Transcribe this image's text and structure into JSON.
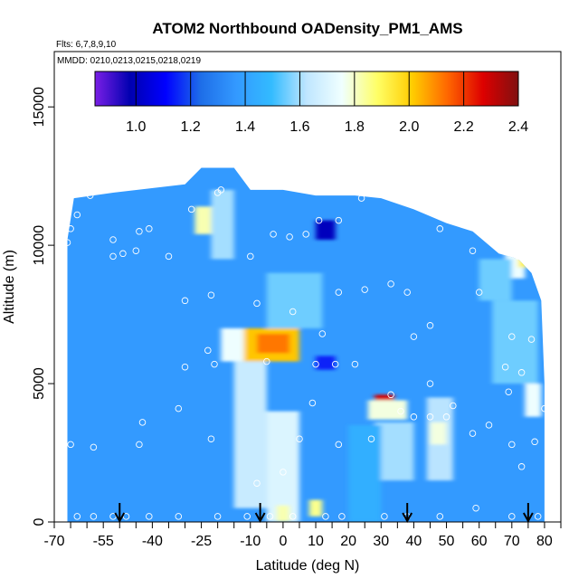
{
  "chart_data": {
    "type": "heatmap",
    "title": "ATOM2 Northbound OADensity_PM1_AMS",
    "flights_label": "Flts: 6,7,8,9,10",
    "dates_label": "MMDD: 0210,0213,0215,0218,0219",
    "xlabel": "Latitude (deg N)",
    "ylabel": "Altitude (m)",
    "xlim": [
      -70,
      85
    ],
    "ylim": [
      0,
      17000
    ],
    "x_ticks": [
      -70,
      -55,
      -40,
      -25,
      -10,
      0,
      10,
      20,
      30,
      40,
      50,
      60,
      70,
      80
    ],
    "x_minor_ticks": [
      -65,
      -60,
      -50,
      -45,
      -35,
      -30,
      -20,
      -15,
      -5,
      5,
      15,
      25,
      35,
      45,
      55,
      65,
      75,
      85
    ],
    "y_ticks": [
      0,
      5000,
      10000,
      15000
    ],
    "colorbar": {
      "min": 0.85,
      "max": 2.4,
      "ticks": [
        1.0,
        1.2,
        1.4,
        1.6,
        1.8,
        2.0,
        2.2,
        2.4
      ],
      "colors": [
        "#7a1fe6",
        "#0000b0",
        "#0000ff",
        "#1e6ee8",
        "#3399ff",
        "#33bbff",
        "#bfe6ff",
        "#f0ffff",
        "#ffff66",
        "#ffcc00",
        "#ff6600",
        "#dd0000",
        "#801010"
      ]
    },
    "background_value": 1.37,
    "envelope": [
      [
        -66,
        0
      ],
      [
        -66,
        10200
      ],
      [
        -64,
        11700
      ],
      [
        -52,
        11900
      ],
      [
        -30,
        12200
      ],
      [
        -25,
        12800
      ],
      [
        -15,
        12800
      ],
      [
        -10,
        12000
      ],
      [
        0,
        12000
      ],
      [
        10,
        11800
      ],
      [
        22,
        11800
      ],
      [
        30,
        11700
      ],
      [
        40,
        11300
      ],
      [
        50,
        10800
      ],
      [
        58,
        10500
      ],
      [
        66,
        9700
      ],
      [
        72,
        9500
      ],
      [
        76,
        9000
      ],
      [
        79,
        8000
      ],
      [
        80,
        5000
      ],
      [
        80,
        0
      ]
    ],
    "patches": [
      {
        "lat": [
          -12,
          5
        ],
        "alt": [
          5800,
          7000
        ],
        "value": 2.02
      },
      {
        "lat": [
          -8,
          2
        ],
        "alt": [
          6100,
          6800
        ],
        "value": 2.12
      },
      {
        "lat": [
          -19,
          -12
        ],
        "alt": [
          5800,
          7000
        ],
        "value": 1.75
      },
      {
        "lat": [
          -27,
          -20
        ],
        "alt": [
          10400,
          11400
        ],
        "value": 1.82
      },
      {
        "lat": [
          -22,
          -15
        ],
        "alt": [
          9500,
          12000
        ],
        "value": 1.6
      },
      {
        "lat": [
          -15,
          -5
        ],
        "alt": [
          500,
          5800
        ],
        "value": 1.65
      },
      {
        "lat": [
          -5,
          5
        ],
        "alt": [
          0,
          4000
        ],
        "value": 1.7
      },
      {
        "lat": [
          -2,
          2
        ],
        "alt": [
          0,
          600
        ],
        "value": 1.82
      },
      {
        "lat": [
          8,
          12
        ],
        "alt": [
          200,
          800
        ],
        "value": 1.85
      },
      {
        "lat": [
          -5,
          12
        ],
        "alt": [
          7000,
          9000
        ],
        "value": 1.55
      },
      {
        "lat": [
          10,
          16
        ],
        "alt": [
          10200,
          10900
        ],
        "value": 1.0
      },
      {
        "lat": [
          10,
          16
        ],
        "alt": [
          5500,
          6000
        ],
        "value": 1.15
      },
      {
        "lat": [
          28,
          34
        ],
        "alt": [
          3900,
          4600
        ],
        "value": 2.28
      },
      {
        "lat": [
          26,
          38
        ],
        "alt": [
          3700,
          4400
        ],
        "value": 1.78
      },
      {
        "lat": [
          28,
          40
        ],
        "alt": [
          1500,
          3600
        ],
        "value": 1.6
      },
      {
        "lat": [
          44,
          52
        ],
        "alt": [
          1500,
          4500
        ],
        "value": 1.62
      },
      {
        "lat": [
          45,
          50
        ],
        "alt": [
          2800,
          3600
        ],
        "value": 1.78
      },
      {
        "lat": [
          68,
          74
        ],
        "alt": [
          8800,
          9800
        ],
        "value": 1.75
      },
      {
        "lat": [
          72,
          75
        ],
        "alt": [
          9200,
          9700
        ],
        "value": 1.92
      },
      {
        "lat": [
          64,
          78
        ],
        "alt": [
          5000,
          8000
        ],
        "value": 1.55
      },
      {
        "lat": [
          74,
          79
        ],
        "alt": [
          3800,
          5000
        ],
        "value": 1.75
      },
      {
        "lat": [
          60,
          70
        ],
        "alt": [
          8000,
          9500
        ],
        "value": 1.55
      },
      {
        "lat": [
          20,
          30
        ],
        "alt": [
          0,
          3500
        ],
        "value": 1.45
      }
    ],
    "points": [
      [
        -66,
        10100
      ],
      [
        -65,
        10600
      ],
      [
        -63,
        11100
      ],
      [
        -59,
        11800
      ],
      [
        -52,
        9600
      ],
      [
        -49,
        9700
      ],
      [
        -44,
        10500
      ],
      [
        -41,
        10600
      ],
      [
        -28,
        11300
      ],
      [
        -20,
        11900
      ],
      [
        -19,
        12000
      ],
      [
        -3,
        10400
      ],
      [
        2,
        10300
      ],
      [
        7,
        10400
      ],
      [
        11,
        10900
      ],
      [
        17,
        10900
      ],
      [
        24,
        11700
      ],
      [
        32,
        11800
      ],
      [
        38,
        11800
      ],
      [
        48,
        10600
      ],
      [
        58,
        9800
      ],
      [
        64,
        10100
      ],
      [
        72,
        9600
      ],
      [
        -52,
        10200
      ],
      [
        -45,
        9800
      ],
      [
        -35,
        9600
      ],
      [
        -30,
        8000
      ],
      [
        -22,
        8200
      ],
      [
        -10,
        9600
      ],
      [
        -8,
        7900
      ],
      [
        3,
        7600
      ],
      [
        12,
        6800
      ],
      [
        17,
        8300
      ],
      [
        25,
        8400
      ],
      [
        33,
        8600
      ],
      [
        38,
        8300
      ],
      [
        45,
        7100
      ],
      [
        60,
        8300
      ],
      [
        70,
        6700
      ],
      [
        76,
        6600
      ],
      [
        -30,
        5600
      ],
      [
        -23,
        6200
      ],
      [
        -21,
        5700
      ],
      [
        -5,
        5800
      ],
      [
        10,
        5700
      ],
      [
        16,
        5700
      ],
      [
        22,
        5700
      ],
      [
        33,
        4600
      ],
      [
        40,
        6700
      ],
      [
        45,
        5000
      ],
      [
        52,
        4200
      ],
      [
        68,
        5600
      ],
      [
        73,
        5400
      ],
      [
        69,
        4700
      ],
      [
        -65,
        2800
      ],
      [
        -58,
        2700
      ],
      [
        -44,
        2800
      ],
      [
        -43,
        3600
      ],
      [
        -32,
        4100
      ],
      [
        -22,
        3000
      ],
      [
        -8,
        1400
      ],
      [
        0,
        1800
      ],
      [
        5,
        3000
      ],
      [
        9,
        4300
      ],
      [
        17,
        2800
      ],
      [
        27,
        3000
      ],
      [
        36,
        4000
      ],
      [
        40,
        3800
      ],
      [
        45,
        3800
      ],
      [
        50,
        3800
      ],
      [
        58,
        3200
      ],
      [
        63,
        3500
      ],
      [
        70,
        2800
      ],
      [
        73,
        2000
      ],
      [
        77,
        2900
      ],
      [
        80,
        4100
      ],
      [
        -63,
        200
      ],
      [
        -58,
        200
      ],
      [
        -52,
        200
      ],
      [
        -48,
        200
      ],
      [
        -41,
        200
      ],
      [
        -32,
        200
      ],
      [
        -20,
        200
      ],
      [
        -11,
        200
      ],
      [
        -4,
        200
      ],
      [
        3,
        200
      ],
      [
        13,
        200
      ],
      [
        18,
        200
      ],
      [
        31,
        200
      ],
      [
        38,
        200
      ],
      [
        48,
        200
      ],
      [
        59,
        500
      ],
      [
        70,
        200
      ],
      [
        78,
        200
      ]
    ],
    "arrows": [
      -50,
      -7,
      38,
      75
    ]
  }
}
